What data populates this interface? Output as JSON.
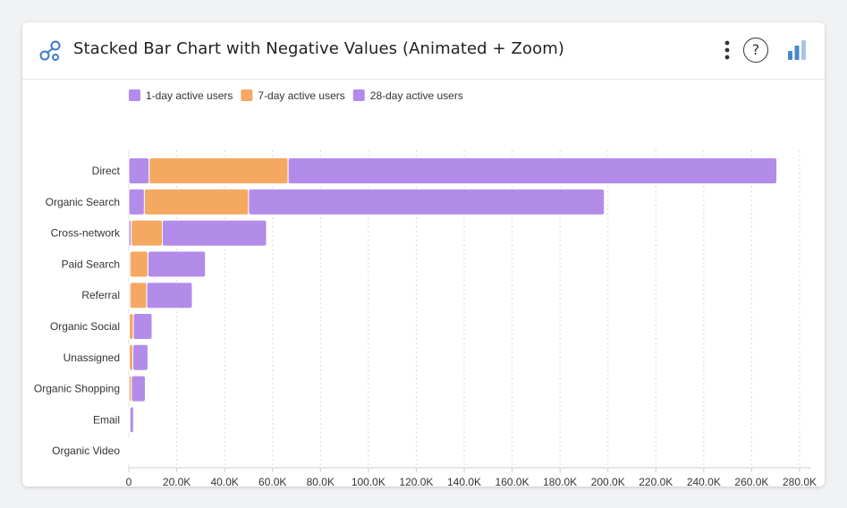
{
  "header": {
    "title": "Stacked Bar Chart with Negative Values (Animated + Zoom)",
    "logo_icon": "network-icon",
    "menu_icon": "vertical-dots-icon",
    "help_label": "?",
    "chart_type_icon": "bar-chart-icon"
  },
  "colors": {
    "one_day": "#b38be8",
    "seven_day": "#f5a862",
    "twenty_eight_day": "#b38be8",
    "logo": "#3d7cc9",
    "chart_icon": "#4a86c8"
  },
  "chart_data": {
    "type": "bar",
    "orientation": "horizontal",
    "stacked": true,
    "categories": [
      "Direct",
      "Organic Search",
      "Cross-network",
      "Paid Search",
      "Referral",
      "Organic Social",
      "Unassigned",
      "Organic Shopping",
      "Email",
      "Organic Video"
    ],
    "series": [
      {
        "name": "1-day active users",
        "color": "#b38be8",
        "values": [
          8500,
          6500,
          1000,
          500,
          500,
          200,
          200,
          100,
          100,
          0
        ]
      },
      {
        "name": "7-day active users",
        "color": "#f5a862",
        "values": [
          58000,
          43500,
          13000,
          7500,
          7000,
          1700,
          1500,
          1000,
          400,
          0
        ]
      },
      {
        "name": "28-day active users",
        "color": "#b38be8",
        "values": [
          204000,
          148500,
          43500,
          24000,
          19000,
          7800,
          6300,
          5800,
          1500,
          100
        ]
      }
    ],
    "x_ticks": [
      "0",
      "20.0K",
      "40.0K",
      "60.0K",
      "80.0K",
      "100.0K",
      "120.0K",
      "140.0K",
      "160.0K",
      "180.0K",
      "200.0K",
      "220.0K",
      "240.0K",
      "260.0K",
      "280.0K"
    ],
    "xlim": [
      0,
      280000
    ],
    "grid": true,
    "legend_position": "top-left"
  }
}
